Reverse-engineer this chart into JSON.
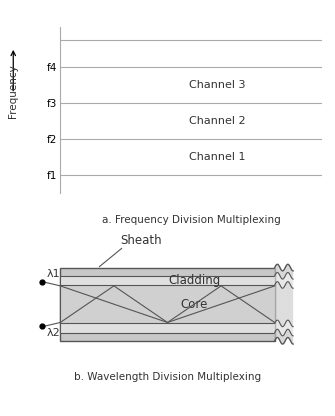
{
  "fig_width": 3.35,
  "fig_height": 4.16,
  "dpi": 100,
  "panel_a": {
    "title": "a. Frequency Division Multiplexing",
    "ylabel": "Frequency",
    "yticks": [
      "f1",
      "f2",
      "f3",
      "f4"
    ],
    "channels": [
      "Channel 1",
      "Channel 2",
      "Channel 3"
    ],
    "line_color": "#aaaaaa",
    "text_color": "#333333"
  },
  "panel_b": {
    "title": "b. Wavelength Division Multiplexing",
    "labels": {
      "sheath": "Sheath",
      "cladding": "Cladding",
      "core": "Core",
      "lambda1": "λ1",
      "lambda2": "λ2"
    }
  }
}
